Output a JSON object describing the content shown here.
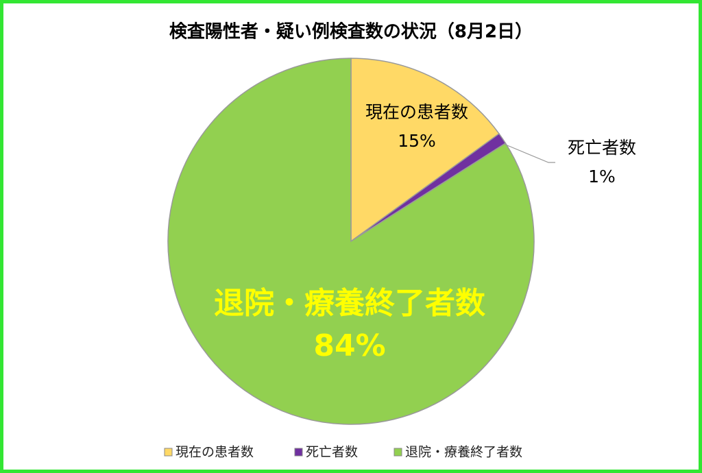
{
  "chart_data": {
    "type": "pie",
    "title": "検査陽性者・疑い例検査数の状況（8月2日）",
    "categories": [
      "現在の患者数",
      "死亡者数",
      "退院・療養終了者数"
    ],
    "values": [
      15,
      1,
      84
    ],
    "value_labels": [
      "15%",
      "1%",
      "84%"
    ],
    "colors": [
      "#FFD966",
      "#7030A0",
      "#92D050"
    ],
    "legend": "bottom"
  }
}
